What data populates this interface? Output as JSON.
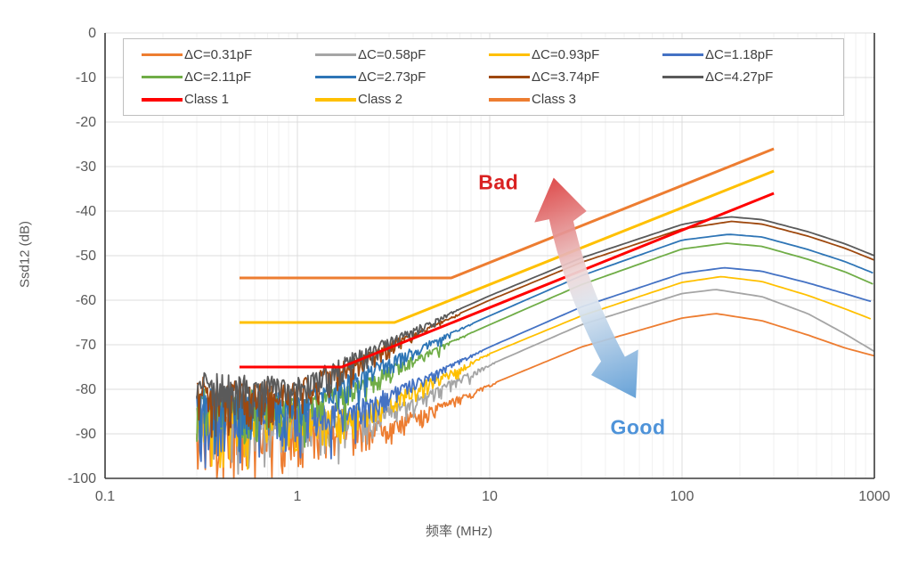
{
  "chart_data": {
    "type": "line",
    "title": "",
    "xlabel": "频率 (MHz)",
    "ylabel": "Ssd12 (dB)",
    "x_axis": {
      "scale": "log",
      "range_mhz": [
        0.1,
        1000
      ],
      "ticks": [
        0.1,
        1,
        10,
        100,
        1000
      ],
      "tick_labels": [
        "0.1",
        "1",
        "10",
        "100",
        "1000"
      ]
    },
    "y_axis": {
      "range_db": [
        -100,
        0
      ],
      "ticks": [
        0,
        -10,
        -20,
        -30,
        -40,
        -50,
        -60,
        -70,
        -80,
        -90,
        -100
      ]
    },
    "grid": {
      "horizontal_interval_db": 10,
      "vertical": "log decades + minor subdivisions",
      "major_color": "#DCDCDC",
      "minor_color": "#F1F1F1",
      "spine_color": "#3B3B3B"
    },
    "axis_text_color": "#595959",
    "legend": {
      "position": "top-left-inside",
      "border_color": "#BFBFBF",
      "entries": [
        {
          "label": "ΔC=0.31pF",
          "color": "#ED7D31",
          "thick": false
        },
        {
          "label": "ΔC=0.58pF",
          "color": "#A5A5A5",
          "thick": false
        },
        {
          "label": "ΔC=0.93pF",
          "color": "#FFC000",
          "thick": false
        },
        {
          "label": "ΔC=1.18pF",
          "color": "#4472C4",
          "thick": false
        },
        {
          "label": "ΔC=2.11pF",
          "color": "#70AD47",
          "thick": false
        },
        {
          "label": "ΔC=2.73pF",
          "color": "#2E75B6",
          "thick": false
        },
        {
          "label": "ΔC=3.74pF",
          "color": "#9E480E",
          "thick": false
        },
        {
          "label": "ΔC=4.27pF",
          "color": "#5A5A5A",
          "thick": false
        },
        {
          "label": "Class 1",
          "color": "#FF0000",
          "thick": true
        },
        {
          "label": "Class 2",
          "color": "#FFC000",
          "thick": true
        },
        {
          "label": "Class 3",
          "color": "#ED7D31",
          "thick": true
        }
      ]
    },
    "series": [
      {
        "name": "ΔC=0.31pF",
        "color": "#ED7D31",
        "line_width": 1.8,
        "noise": {
          "amp_db": 17,
          "fade_end_mhz": 12,
          "seed": 11
        },
        "trend_points": [
          [
            0.3,
            -88
          ],
          [
            2.9,
            -88
          ],
          [
            6,
            -83
          ],
          [
            10,
            -79
          ],
          [
            30,
            -70.5
          ],
          [
            100,
            -64
          ],
          [
            150,
            -63
          ],
          [
            260,
            -64.6
          ],
          [
            450,
            -67.8
          ],
          [
            700,
            -70.7
          ],
          [
            1000,
            -72.5
          ]
        ]
      },
      {
        "name": "ΔC=0.58pF",
        "color": "#A5A5A5",
        "line_width": 1.8,
        "noise": {
          "amp_db": 17,
          "fade_end_mhz": 12,
          "seed": 22
        },
        "trend_points": [
          [
            0.3,
            -86
          ],
          [
            2.5,
            -86
          ],
          [
            5,
            -80.5
          ],
          [
            10,
            -74.5
          ],
          [
            30,
            -65.5
          ],
          [
            100,
            -58.5
          ],
          [
            150,
            -57.6
          ],
          [
            260,
            -59.2
          ],
          [
            450,
            -63
          ],
          [
            700,
            -67.5
          ],
          [
            1000,
            -71.5
          ]
        ]
      },
      {
        "name": "ΔC=0.93pF",
        "color": "#FFC000",
        "line_width": 1.8,
        "noise": {
          "amp_db": 16,
          "fade_end_mhz": 11,
          "seed": 33
        },
        "trend_points": [
          [
            0.3,
            -85
          ],
          [
            2.1,
            -85
          ],
          [
            5,
            -78
          ],
          [
            10,
            -72
          ],
          [
            30,
            -63.5
          ],
          [
            100,
            -56
          ],
          [
            160,
            -54.7
          ],
          [
            260,
            -55.8
          ],
          [
            450,
            -58.9
          ],
          [
            700,
            -61.9
          ],
          [
            1000,
            -64.5
          ]
        ]
      },
      {
        "name": "ΔC=1.18pF",
        "color": "#4472C4",
        "line_width": 1.8,
        "noise": {
          "amp_db": 15,
          "fade_end_mhz": 10,
          "seed": 44
        },
        "trend_points": [
          [
            0.3,
            -84
          ],
          [
            2,
            -84
          ],
          [
            5,
            -76.5
          ],
          [
            10,
            -70.5
          ],
          [
            30,
            -61.5
          ],
          [
            100,
            -54
          ],
          [
            165,
            -52.7
          ],
          [
            260,
            -53.5
          ],
          [
            450,
            -56.1
          ],
          [
            700,
            -58.5
          ],
          [
            1000,
            -60.5
          ]
        ]
      },
      {
        "name": "ΔC=2.11pF",
        "color": "#70AD47",
        "line_width": 1.8,
        "noise": {
          "amp_db": 14,
          "fade_end_mhz": 9,
          "seed": 55
        },
        "trend_points": [
          [
            0.3,
            -82.5
          ],
          [
            1.3,
            -82.5
          ],
          [
            3,
            -75.5
          ],
          [
            10,
            -65.5
          ],
          [
            30,
            -56.5
          ],
          [
            100,
            -48.5
          ],
          [
            170,
            -47.2
          ],
          [
            260,
            -47.9
          ],
          [
            450,
            -50.8
          ],
          [
            700,
            -53.6
          ],
          [
            1000,
            -56.5
          ]
        ]
      },
      {
        "name": "ΔC=2.73pF",
        "color": "#2E75B6",
        "line_width": 1.8,
        "noise": {
          "amp_db": 14,
          "fade_end_mhz": 9,
          "seed": 66
        },
        "trend_points": [
          [
            0.3,
            -82
          ],
          [
            1.1,
            -82
          ],
          [
            3,
            -73.5
          ],
          [
            10,
            -63.5
          ],
          [
            30,
            -54.5
          ],
          [
            100,
            -46.5
          ],
          [
            175,
            -45.2
          ],
          [
            260,
            -45.8
          ],
          [
            450,
            -48.6
          ],
          [
            700,
            -51.3
          ],
          [
            1000,
            -54
          ]
        ]
      },
      {
        "name": "ΔC=3.74pF",
        "color": "#9E480E",
        "line_width": 1.8,
        "noise": {
          "amp_db": 13,
          "fade_end_mhz": 8,
          "seed": 77
        },
        "trend_points": [
          [
            0.3,
            -80
          ],
          [
            0.95,
            -80
          ],
          [
            3,
            -70
          ],
          [
            10,
            -60
          ],
          [
            30,
            -51.5
          ],
          [
            100,
            -44
          ],
          [
            180,
            -42.3
          ],
          [
            260,
            -42.9
          ],
          [
            450,
            -45.6
          ],
          [
            700,
            -48.3
          ],
          [
            1000,
            -51
          ]
        ]
      },
      {
        "name": "ΔC=4.27pF",
        "color": "#5A5A5A",
        "line_width": 1.8,
        "noise": {
          "amp_db": 13,
          "fade_end_mhz": 8,
          "seed": 88
        },
        "trend_points": [
          [
            0.3,
            -79
          ],
          [
            0.94,
            -79
          ],
          [
            3,
            -69
          ],
          [
            10,
            -59
          ],
          [
            30,
            -50.5
          ],
          [
            100,
            -43
          ],
          [
            140,
            -41.8
          ],
          [
            180,
            -41.3
          ],
          [
            260,
            -41.9
          ],
          [
            450,
            -44.6
          ],
          [
            700,
            -47.3
          ],
          [
            1000,
            -50
          ]
        ]
      }
    ],
    "limit_lines": [
      {
        "name": "Class 1",
        "color": "#FF0000",
        "line_width": 3,
        "points": [
          [
            0.5,
            -75
          ],
          [
            1.7,
            -75
          ],
          [
            300,
            -36
          ]
        ]
      },
      {
        "name": "Class 2",
        "color": "#FFC000",
        "line_width": 3,
        "points": [
          [
            0.5,
            -65
          ],
          [
            3.2,
            -65
          ],
          [
            300,
            -31
          ]
        ]
      },
      {
        "name": "Class 3",
        "color": "#ED7D31",
        "line_width": 3,
        "points": [
          [
            0.5,
            -55
          ],
          [
            6.3,
            -55
          ],
          [
            300,
            -26
          ]
        ]
      }
    ],
    "annotations": {
      "bad": {
        "text": "Bad",
        "color": "#D92121",
        "at": {
          "f_mhz": 11.1,
          "db": -33.5
        }
      },
      "good": {
        "text": "Good",
        "color": "#4E93D9",
        "at": {
          "f_mhz": 59,
          "db": -88.5
        }
      },
      "arrow": {
        "type": "double-headed-gradient",
        "tip_up": {
          "f_mhz": 21.5,
          "db": -32.5
        },
        "ctrl": {
          "f_mhz": 26,
          "db": -58.5
        },
        "tip_down": {
          "f_mhz": 57.5,
          "db": -82
        },
        "color_up": "#DC4040",
        "color_down": "#5B9BD5"
      }
    }
  }
}
